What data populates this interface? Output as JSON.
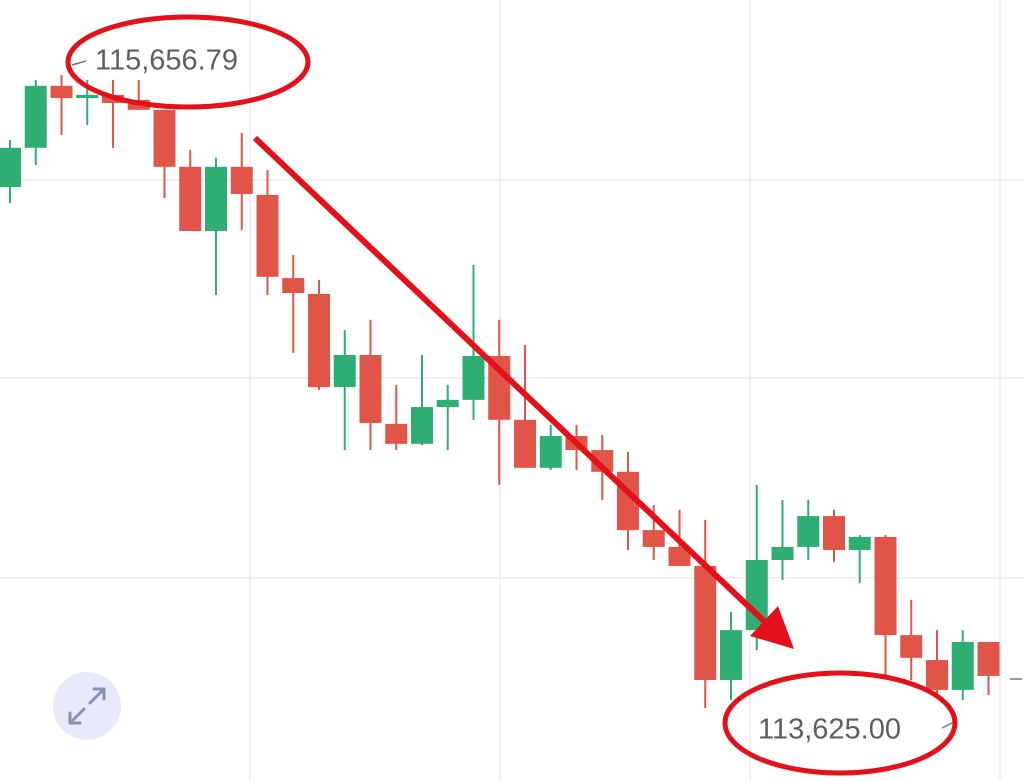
{
  "chart_data": {
    "type": "candlestick",
    "up_color": "#2fae74",
    "down_color": "#e05548",
    "open": [
      115297,
      115423,
      115622,
      115583,
      115593,
      115577,
      115545,
      115362,
      115156,
      115362,
      115272,
      115005,
      114954,
      114655,
      114758,
      114537,
      114473,
      114591,
      114614,
      114755,
      114550,
      114396,
      114498,
      114453,
      114383,
      114196,
      114142,
      114081,
      113715,
      113875,
      114100,
      114142,
      114241,
      114132,
      114174,
      113859,
      113779,
      113683,
      113837
    ],
    "high": [
      115448,
      115641,
      115656.79,
      115641,
      115641,
      115641,
      115545,
      115416,
      115391,
      115471,
      115352,
      115079,
      114999,
      114838,
      114871,
      114662,
      114758,
      114662,
      115047,
      114871,
      114790,
      114534,
      114534,
      114501,
      114447,
      114277,
      114261,
      114229,
      113933,
      114341,
      114293,
      114293,
      114261,
      114180,
      114180,
      113972,
      113875,
      113875,
      113837
    ],
    "low": [
      115246,
      115368,
      115464,
      115496,
      115423,
      115545,
      115262,
      115156,
      114951,
      115159,
      114951,
      114765,
      114646,
      114453,
      114453,
      114453,
      114469,
      114453,
      114550,
      114341,
      114396,
      114389,
      114389,
      114293,
      114132,
      114100,
      114081,
      113625,
      113651,
      113811,
      114036,
      114100,
      114094,
      114026,
      113721,
      113715,
      113667,
      113651,
      113667
    ],
    "close": [
      115423,
      115622,
      115583,
      115593,
      115567,
      115545,
      115362,
      115156,
      115362,
      115275,
      115009,
      114957,
      114655,
      114758,
      114540,
      114473,
      114591,
      114614,
      114755,
      114550,
      114396,
      114498,
      114453,
      114383,
      114196,
      114142,
      114081,
      113715,
      113875,
      114100,
      114142,
      114241,
      114132,
      114174,
      113859,
      113786,
      113683,
      113837,
      113728
    ],
    "annotations": [
      {
        "value": 115656.79,
        "label": "115,656.79"
      },
      {
        "value": 113625,
        "label": "113,625.00"
      }
    ]
  }
}
